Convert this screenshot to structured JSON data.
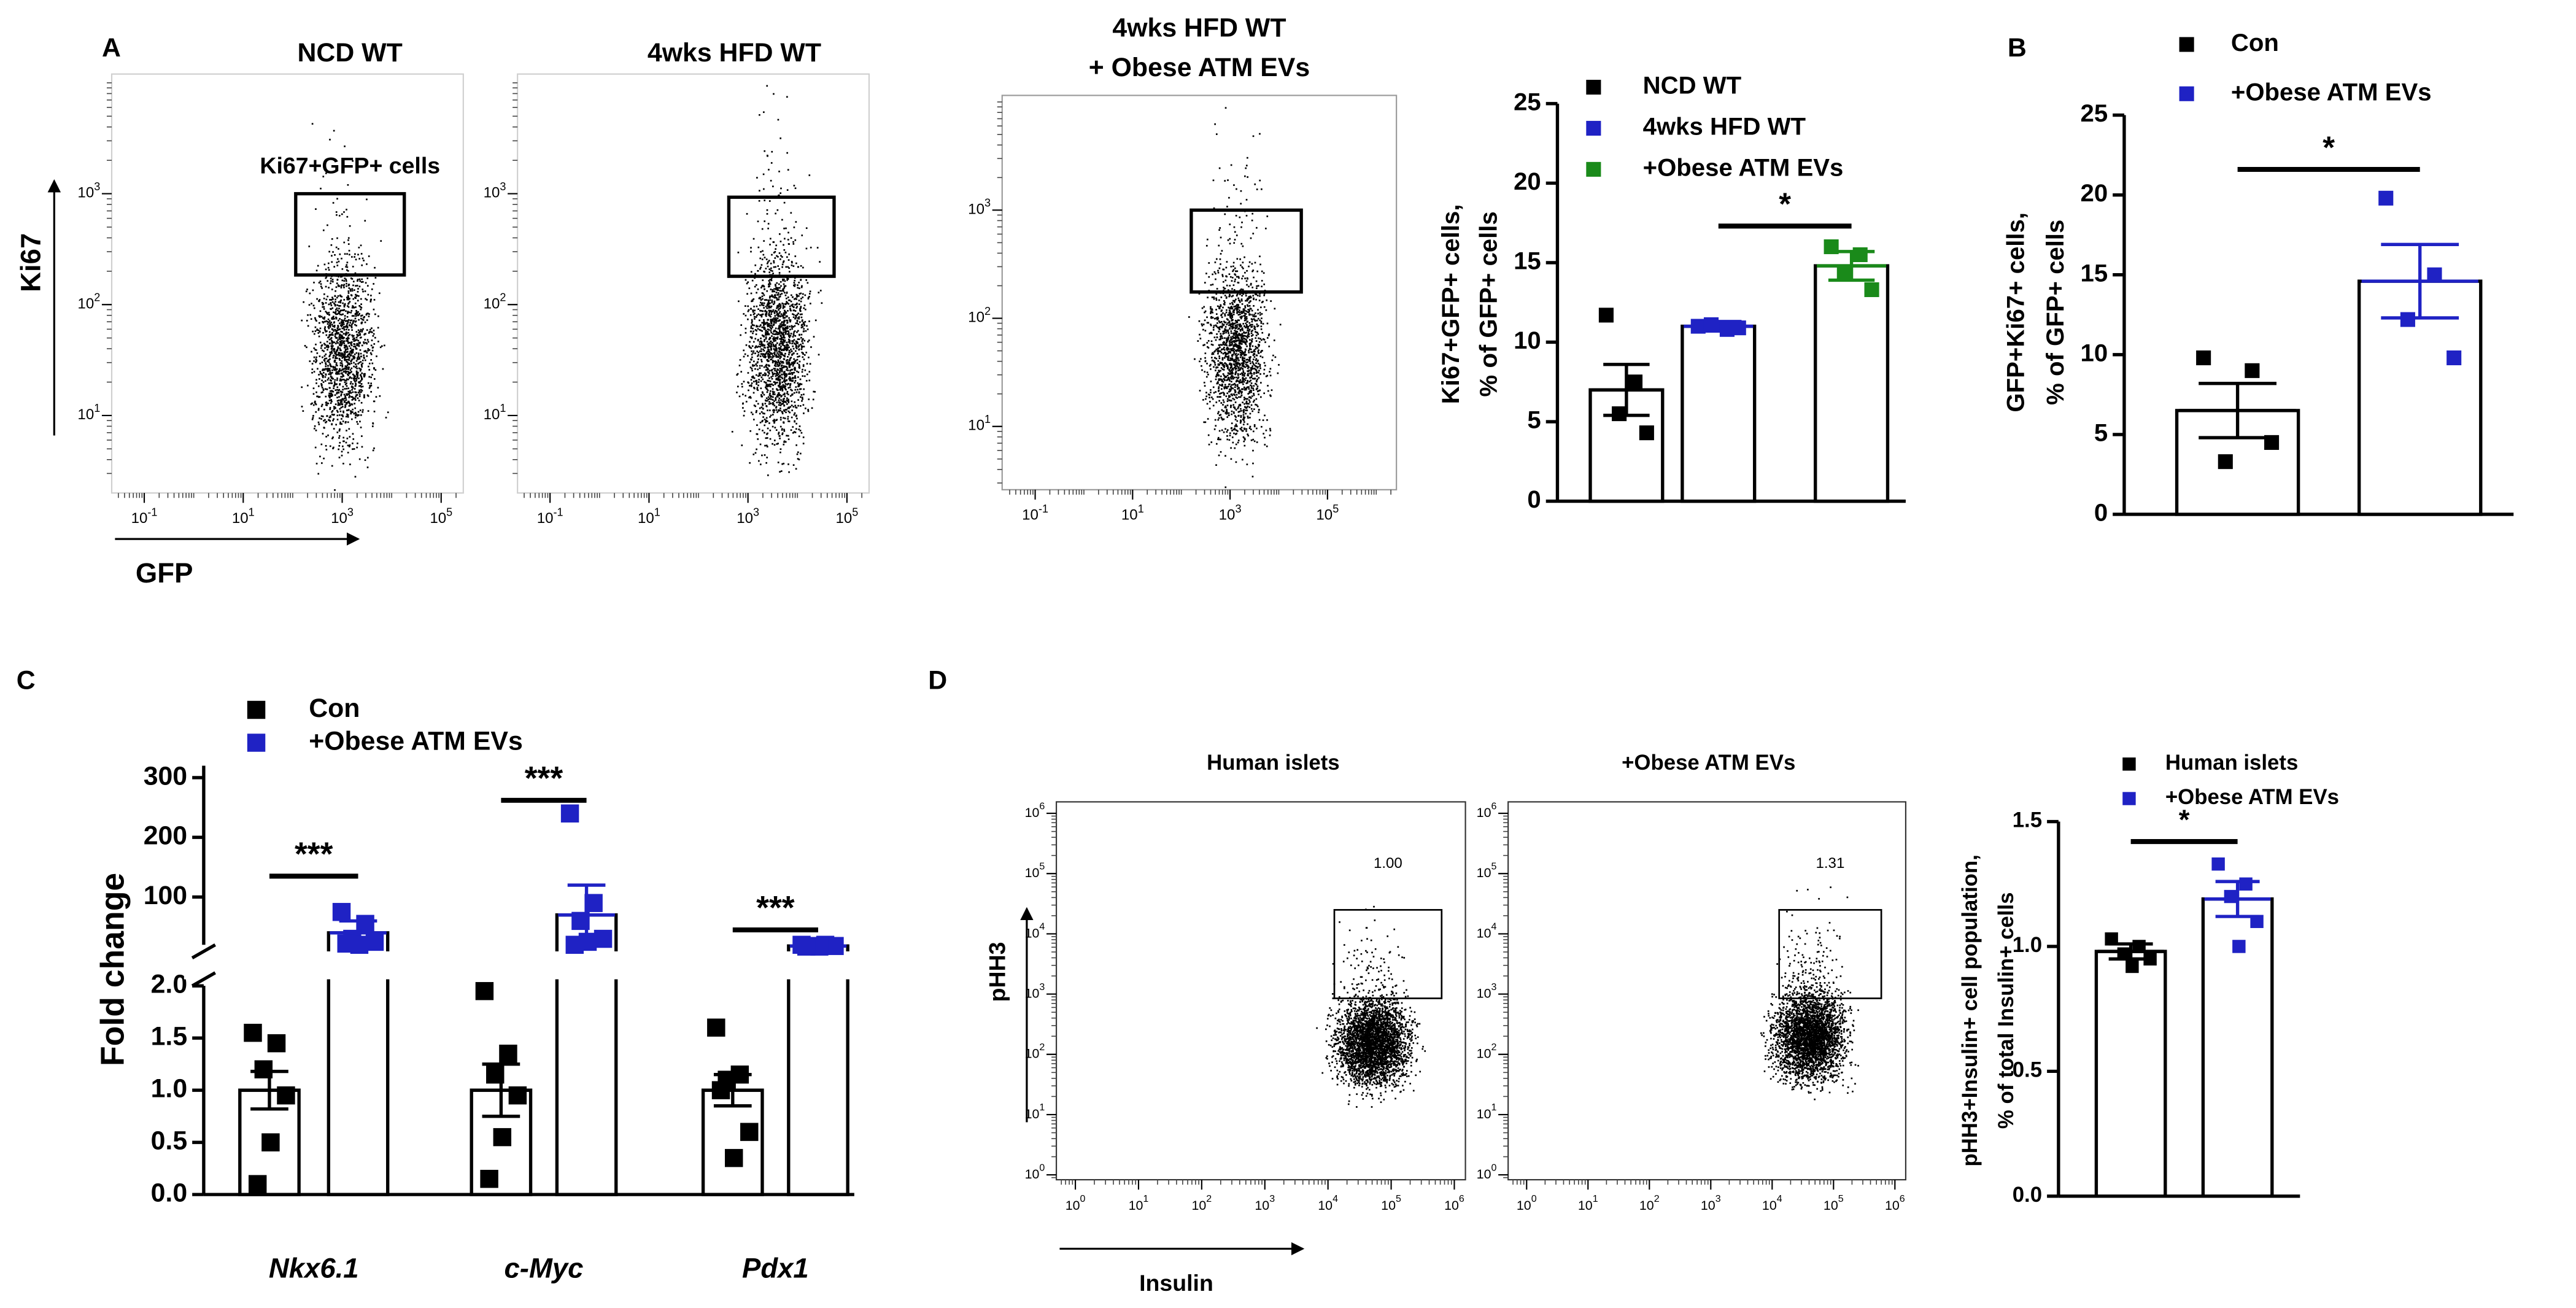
{
  "panel_labels": [
    "A",
    "B",
    "C",
    "D"
  ],
  "chart_data": [
    {
      "type": "flow",
      "title": [
        "NCD WT"
      ],
      "y_label": "Ki67",
      "x_label": "GFP",
      "log": true,
      "xlim": [
        0.022,
        280000
      ],
      "ylim": [
        2,
        12000
      ],
      "xticks": [
        {
          "value": 0.1,
          "label": "10",
          "exponent": "-1"
        },
        {
          "value": 10,
          "label": "10",
          "exponent": "1"
        },
        {
          "value": 1000,
          "label": "10",
          "exponent": "3"
        },
        {
          "value": 100000,
          "label": "10",
          "exponent": "5"
        }
      ],
      "yticks": [
        {
          "value": 10,
          "label": "10",
          "exponent": "1"
        },
        {
          "value": 100,
          "label": "10",
          "exponent": "2"
        },
        {
          "value": 1000,
          "label": "10",
          "exponent": "3"
        }
      ],
      "gate": {
        "x": [
          115,
          18000
        ],
        "y": [
          185,
          1000
        ]
      },
      "gate_label": "Ki67+GFP+ cells"
    },
    {
      "type": "flow",
      "title": [
        "4wks HFD WT"
      ],
      "log": true,
      "xlim": [
        0.022,
        280000
      ],
      "ylim": [
        2,
        12000
      ],
      "xticks": [
        {
          "value": 0.1,
          "label": "10",
          "exponent": "-1"
        },
        {
          "value": 10,
          "label": "10",
          "exponent": "1"
        },
        {
          "value": 1000,
          "label": "10",
          "exponent": "3"
        },
        {
          "value": 100000,
          "label": "10",
          "exponent": "5"
        }
      ],
      "yticks": [
        {
          "value": 10,
          "label": "10",
          "exponent": "1"
        },
        {
          "value": 100,
          "label": "10",
          "exponent": "2"
        },
        {
          "value": 1000,
          "label": "10",
          "exponent": "3"
        }
      ],
      "gate": {
        "x": [
          410,
          55000
        ],
        "y": [
          180,
          930
        ]
      }
    },
    {
      "type": "flow",
      "title": [
        "4wks HFD WT",
        "+ Obese ATM EVs"
      ],
      "log": true,
      "xlim": [
        0.021,
        2600000
      ],
      "ylim": [
        2.6,
        11500
      ],
      "xticks": [
        {
          "value": 0.1,
          "label": "10",
          "exponent": "-1"
        },
        {
          "value": 10,
          "label": "10",
          "exponent": "1"
        },
        {
          "value": 1000,
          "label": "10",
          "exponent": "3"
        },
        {
          "value": 100000,
          "label": "10",
          "exponent": "5"
        }
      ],
      "yticks": [
        {
          "value": 10,
          "label": "10",
          "exponent": "1"
        },
        {
          "value": 100,
          "label": "10",
          "exponent": "2"
        },
        {
          "value": 1000,
          "label": "10",
          "exponent": "3"
        }
      ],
      "gate": {
        "x": [
          160,
          29000
        ],
        "y": [
          175,
          1000
        ]
      }
    },
    {
      "type": "bar",
      "y_label": [
        "Ki67+GFP+ cells,",
        "% of GFP+ cells"
      ],
      "ylim": [
        0,
        25
      ],
      "yticks": [
        0,
        5,
        10,
        15,
        20,
        25
      ],
      "series": [
        {
          "name": "NCD WT",
          "color": "#000000",
          "values": [
            7.0
          ],
          "errors": [
            1.6
          ],
          "points": [
            [
              11.7,
              7.5,
              5.5,
              4.3
            ]
          ]
        },
        {
          "name": "4wks HFD WT",
          "color": "#1f22c4",
          "values": [
            11.0
          ],
          "errors": [
            0.3
          ],
          "points": [
            [
              11.0,
              10.8,
              11.1,
              10.9
            ]
          ]
        },
        {
          "name": "+Obese ATM EVs",
          "color": "#1a8a1a",
          "values": [
            14.8
          ],
          "errors": [
            0.9
          ],
          "points": [
            [
              16.0,
              15.5,
              14.3,
              13.3
            ]
          ]
        }
      ],
      "significance": [
        {
          "label": "*",
          "y": 17.3
        }
      ]
    },
    {
      "type": "bar",
      "y_label": [
        "GFP+Ki67+ cells,",
        "% of GFP+ cells"
      ],
      "ylim": [
        0,
        25
      ],
      "yticks": [
        0,
        5,
        10,
        15,
        20,
        25
      ],
      "series": [
        {
          "name": "Con",
          "color": "#000000",
          "values": [
            6.5
          ],
          "errors": [
            1.7
          ],
          "points": [
            [
              9.8,
              9.0,
              3.3,
              4.5
            ]
          ]
        },
        {
          "name": "+Obese ATM EVs",
          "color": "#1f22c4",
          "values": [
            14.6
          ],
          "errors": [
            2.3
          ],
          "points": [
            [
              19.8,
              15.0,
              12.2,
              9.8
            ]
          ]
        }
      ],
      "significance": [
        {
          "label": "*",
          "y": 21.6
        }
      ]
    },
    {
      "type": "bar",
      "y_label": [
        "Fold change"
      ],
      "categories": [
        "Nkx6.1",
        "c-Myc",
        "Pdx1"
      ],
      "ylim": [
        0,
        2
      ],
      "yticks": [
        {
          "value": 0,
          "label": "0.0"
        },
        {
          "value": 0.5,
          "label": "0.5"
        },
        {
          "value": 1,
          "label": "1.0"
        },
        {
          "value": 1.5,
          "label": "1.5"
        },
        {
          "value": 2,
          "label": "2.0"
        }
      ],
      "ylim_upper": [
        20,
        320
      ],
      "yticks_upper": [
        100,
        200,
        300
      ],
      "series": [
        {
          "name": "Con",
          "color": "#000000",
          "values": [
            1.0,
            1.0,
            1.0
          ],
          "errors": [
            0.18,
            0.25,
            0.15
          ],
          "points": [
            [
              1.55,
              1.45,
              1.2,
              0.95,
              0.5,
              0.1
            ],
            [
              1.95,
              1.35,
              1.15,
              0.95,
              0.55,
              0.15
            ],
            [
              1.6,
              1.15,
              1.1,
              0.6,
              0.35,
              1.0
            ]
          ]
        },
        {
          "name": "+Obese ATM EVs",
          "color": "#1f22c4",
          "values": [
            40,
            70,
            18
          ],
          "errors": [
            20,
            50,
            2
          ],
          "points": [
            [
              75,
              55,
              30,
              25,
              20,
              22
            ],
            [
              240,
              90,
              60,
              30,
              25,
              20
            ],
            [
              20,
              20,
              18,
              18,
              17,
              17
            ]
          ]
        }
      ],
      "significance": [
        {
          "label": "***",
          "y": 135
        },
        {
          "label": "***",
          "y": 262
        },
        {
          "label": "***",
          "y": 45
        }
      ]
    },
    {
      "type": "flow",
      "title": [
        "Human islets"
      ],
      "y_label": "pHH3",
      "x_label": "Insulin",
      "log": true,
      "xlim": [
        0.5,
        1500000
      ],
      "ylim": [
        0.83,
        1550000
      ],
      "xticks": [
        {
          "value": 1,
          "label": "10",
          "exponent": "0"
        },
        {
          "value": 10,
          "label": "10",
          "exponent": "1"
        },
        {
          "value": 100,
          "label": "10",
          "exponent": "2"
        },
        {
          "value": 1000,
          "label": "10",
          "exponent": "3"
        },
        {
          "value": 10000,
          "label": "10",
          "exponent": "4"
        },
        {
          "value": 100000,
          "label": "10",
          "exponent": "5"
        },
        {
          "value": 1000000,
          "label": "10",
          "exponent": "6"
        }
      ],
      "yticks": [
        {
          "value": 1,
          "label": "10",
          "exponent": "0"
        },
        {
          "value": 10,
          "label": "10",
          "exponent": "1"
        },
        {
          "value": 100,
          "label": "10",
          "exponent": "2"
        },
        {
          "value": 1000,
          "label": "10",
          "exponent": "3"
        },
        {
          "value": 10000,
          "label": "10",
          "exponent": "4"
        },
        {
          "value": 100000,
          "label": "10",
          "exponent": "5"
        },
        {
          "value": 1000000,
          "label": "10",
          "exponent": "6"
        }
      ],
      "gate": {
        "x": [
          12600,
          630000
        ],
        "y": [
          850,
          25000
        ]
      },
      "gate_label": "1.00"
    },
    {
      "type": "flow",
      "title": [
        "+Obese ATM EVs"
      ],
      "log": true,
      "xlim": [
        0.5,
        1500000
      ],
      "ylim": [
        0.83,
        1550000
      ],
      "xticks": [
        {
          "value": 1,
          "label": "10",
          "exponent": "0"
        },
        {
          "value": 10,
          "label": "10",
          "exponent": "1"
        },
        {
          "value": 100,
          "label": "10",
          "exponent": "2"
        },
        {
          "value": 1000,
          "label": "10",
          "exponent": "3"
        },
        {
          "value": 10000,
          "label": "10",
          "exponent": "4"
        },
        {
          "value": 100000,
          "label": "10",
          "exponent": "5"
        },
        {
          "value": 1000000,
          "label": "10",
          "exponent": "6"
        }
      ],
      "yticks": [
        {
          "value": 1,
          "label": "10",
          "exponent": "0"
        },
        {
          "value": 10,
          "label": "10",
          "exponent": "1"
        },
        {
          "value": 100,
          "label": "10",
          "exponent": "2"
        },
        {
          "value": 1000,
          "label": "10",
          "exponent": "3"
        },
        {
          "value": 10000,
          "label": "10",
          "exponent": "4"
        },
        {
          "value": 100000,
          "label": "10",
          "exponent": "5"
        },
        {
          "value": 1000000,
          "label": "10",
          "exponent": "6"
        }
      ],
      "gate": {
        "x": [
          13000,
          600000
        ],
        "y": [
          850,
          25000
        ]
      },
      "gate_label": "1.31"
    },
    {
      "type": "bar",
      "y_label": [
        "pHH3+Insulin+ cell population,",
        "% of total Insulin+ cells"
      ],
      "ylim": [
        0,
        1.5
      ],
      "yticks": [
        {
          "value": 0,
          "label": "0.0"
        },
        {
          "value": 0.5,
          "label": "0.5"
        },
        {
          "value": 1,
          "label": "1.0"
        },
        {
          "value": 1.5,
          "label": "1.5"
        }
      ],
      "series": [
        {
          "name": "Human islets",
          "color": "#000000",
          "values": [
            0.98
          ],
          "errors": [
            0.03
          ],
          "points": [
            [
              1.03,
              1.0,
              0.97,
              0.95,
              0.92
            ]
          ]
        },
        {
          "name": "+Obese ATM EVs",
          "color": "#1f22c4",
          "values": [
            1.19
          ],
          "errors": [
            0.07
          ],
          "points": [
            [
              1.33,
              1.25,
              1.2,
              1.1,
              1.0
            ]
          ]
        }
      ],
      "significance": [
        {
          "label": "*",
          "y": 1.42
        }
      ]
    }
  ]
}
